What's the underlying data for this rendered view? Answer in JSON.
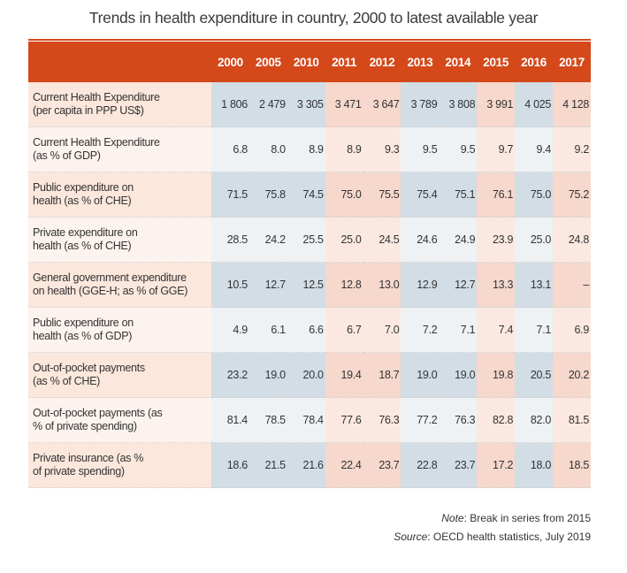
{
  "title": "Trends in health expenditure in country, 2000 to latest available year",
  "table": {
    "years": [
      "2000",
      "2005",
      "2010",
      "2011",
      "2012",
      "2013",
      "2014",
      "2015",
      "2016",
      "2017"
    ],
    "rows": [
      {
        "label1": "Current Health Expenditure",
        "label2": "(per capita in PPP US$)",
        "values": [
          "1 806",
          "2 479",
          "3 305",
          "3 471",
          "3 647",
          "3 789",
          "3 808",
          "3 991",
          "4 025",
          "4 128"
        ]
      },
      {
        "label1": "Current Health Expenditure",
        "label2": "(as % of GDP)",
        "values": [
          "6.8",
          "8.0",
          "8.9",
          "8.9",
          "9.3",
          "9.5",
          "9.5",
          "9.7",
          "9.4",
          "9.2"
        ]
      },
      {
        "label1": "Public expenditure on",
        "label2": "health (as % of CHE)",
        "values": [
          "71.5",
          "75.8",
          "74.5",
          "75.0",
          "75.5",
          "75.4",
          "75.1",
          "76.1",
          "75.0",
          "75.2"
        ]
      },
      {
        "label1": "Private expenditure on",
        "label2": "health (as % of CHE)",
        "values": [
          "28.5",
          "24.2",
          "25.5",
          "25.0",
          "24.5",
          "24.6",
          "24.9",
          "23.9",
          "25.0",
          "24.8"
        ]
      },
      {
        "label1": "General government expenditure",
        "label2": "on health (GGE-H; as % of GGE)",
        "values": [
          "10.5",
          "12.7",
          "12.5",
          "12.8",
          "13.0",
          "12.9",
          "12.7",
          "13.3",
          "13.1",
          "–"
        ]
      },
      {
        "label1": "Public expenditure on",
        "label2": "health (as % of GDP)",
        "values": [
          "4.9",
          "6.1",
          "6.6",
          "6.7",
          "7.0",
          "7.2",
          "7.1",
          "7.4",
          "7.1",
          "6.9"
        ]
      },
      {
        "label1": "Out-of-pocket payments",
        "label2": "(as % of CHE)",
        "values": [
          "23.2",
          "19.0",
          "20.0",
          "19.4",
          "18.7",
          "19.0",
          "19.0",
          "19.8",
          "20.5",
          "20.2"
        ]
      },
      {
        "label1": "Out-of-pocket payments (as",
        "label2": "% of private spending)",
        "values": [
          "81.4",
          "78.5",
          "78.4",
          "77.6",
          "76.3",
          "77.2",
          "76.3",
          "82.8",
          "82.0",
          "81.5"
        ]
      },
      {
        "label1": "Private insurance (as %",
        "label2": "of private spending)",
        "values": [
          "18.6",
          "21.5",
          "21.6",
          "22.4",
          "23.7",
          "22.8",
          "23.7",
          "17.2",
          "18.0",
          "18.5"
        ]
      }
    ]
  },
  "notes": {
    "note_label": "Note",
    "note_text": ": Break in series from 2015",
    "source_label": "Source",
    "source_text": ": OECD health statistics, July 2019"
  }
}
